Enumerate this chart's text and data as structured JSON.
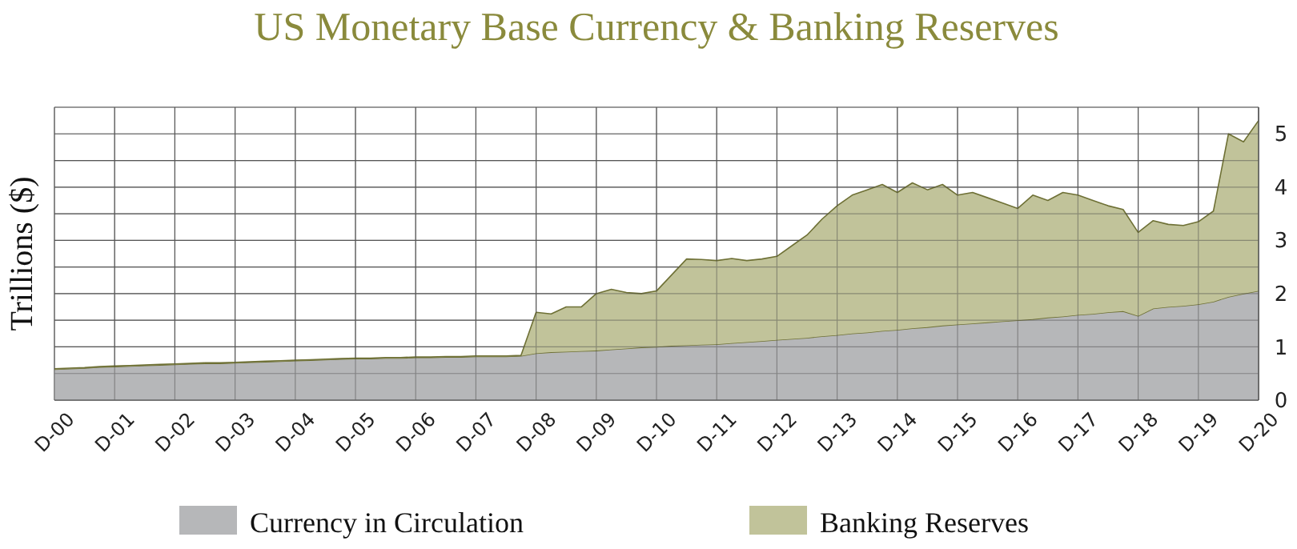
{
  "chart_data": {
    "type": "area",
    "stacked": true,
    "title": "US Monetary Base Currency & Banking Reserves",
    "ylabel": "Trillions ($)",
    "categories": [
      "D-00",
      null,
      null,
      null,
      "D-01",
      null,
      null,
      null,
      "D-02",
      null,
      null,
      null,
      "D-03",
      null,
      null,
      null,
      "D-04",
      null,
      null,
      null,
      "D-05",
      null,
      null,
      null,
      "D-06",
      null,
      null,
      null,
      "D-07",
      null,
      null,
      null,
      "D-08",
      null,
      null,
      null,
      "D-09",
      null,
      null,
      null,
      "D-10",
      null,
      null,
      null,
      "D-11",
      null,
      null,
      null,
      "D-12",
      null,
      null,
      null,
      "D-13",
      null,
      null,
      null,
      "D-14",
      null,
      null,
      null,
      "D-15",
      null,
      null,
      null,
      "D-16",
      null,
      null,
      null,
      "D-17",
      null,
      null,
      null,
      "D-18",
      null,
      null,
      null,
      "D-19",
      null,
      null,
      null,
      "D-20"
    ],
    "series": [
      {
        "name": "Currency in Circulation",
        "color": "#b6b7b9",
        "values": [
          0.58,
          0.59,
          0.6,
          0.62,
          0.63,
          0.64,
          0.65,
          0.66,
          0.67,
          0.68,
          0.69,
          0.69,
          0.7,
          0.71,
          0.72,
          0.73,
          0.74,
          0.75,
          0.76,
          0.77,
          0.78,
          0.78,
          0.79,
          0.79,
          0.8,
          0.8,
          0.81,
          0.81,
          0.82,
          0.82,
          0.82,
          0.83,
          0.88,
          0.9,
          0.91,
          0.92,
          0.93,
          0.95,
          0.97,
          0.99,
          1.0,
          1.02,
          1.03,
          1.04,
          1.05,
          1.07,
          1.09,
          1.11,
          1.13,
          1.15,
          1.17,
          1.2,
          1.22,
          1.25,
          1.27,
          1.3,
          1.32,
          1.35,
          1.37,
          1.4,
          1.42,
          1.44,
          1.46,
          1.48,
          1.5,
          1.52,
          1.55,
          1.57,
          1.6,
          1.62,
          1.65,
          1.67,
          1.58,
          1.72,
          1.75,
          1.77,
          1.8,
          1.85,
          1.94,
          2.0,
          2.05
        ]
      },
      {
        "name": "Banking Reserves",
        "color": "#c1c39a",
        "values": [
          0.01,
          0.01,
          0.01,
          0.01,
          0.01,
          0.01,
          0.01,
          0.01,
          0.01,
          0.01,
          0.01,
          0.01,
          0.01,
          0.01,
          0.01,
          0.01,
          0.01,
          0.01,
          0.01,
          0.01,
          0.01,
          0.01,
          0.01,
          0.01,
          0.01,
          0.01,
          0.01,
          0.01,
          0.01,
          0.01,
          0.01,
          0.01,
          0.77,
          0.72,
          0.84,
          0.83,
          1.07,
          1.13,
          1.05,
          1.01,
          1.05,
          1.33,
          1.62,
          1.6,
          1.57,
          1.59,
          1.53,
          1.54,
          1.57,
          1.75,
          1.93,
          2.2,
          2.43,
          2.6,
          2.68,
          2.75,
          2.58,
          2.73,
          2.58,
          2.65,
          2.43,
          2.46,
          2.34,
          2.22,
          2.1,
          2.33,
          2.2,
          2.33,
          2.25,
          2.13,
          2.0,
          1.91,
          1.57,
          1.65,
          1.55,
          1.51,
          1.55,
          1.7,
          3.06,
          2.85,
          3.2
        ]
      }
    ],
    "ylim": [
      0,
      5.5
    ],
    "yticks": [
      0,
      {
        "value": 0.5,
        "label": null
      },
      1,
      {
        "value": 1.5,
        "label": null
      },
      2,
      {
        "value": 2.5,
        "label": null
      },
      3,
      {
        "value": 3.5,
        "label": null
      },
      4,
      {
        "value": 4.5,
        "label": null
      },
      5,
      {
        "value": 5.5,
        "label": null
      }
    ],
    "grid": true,
    "legend": "bottom"
  }
}
